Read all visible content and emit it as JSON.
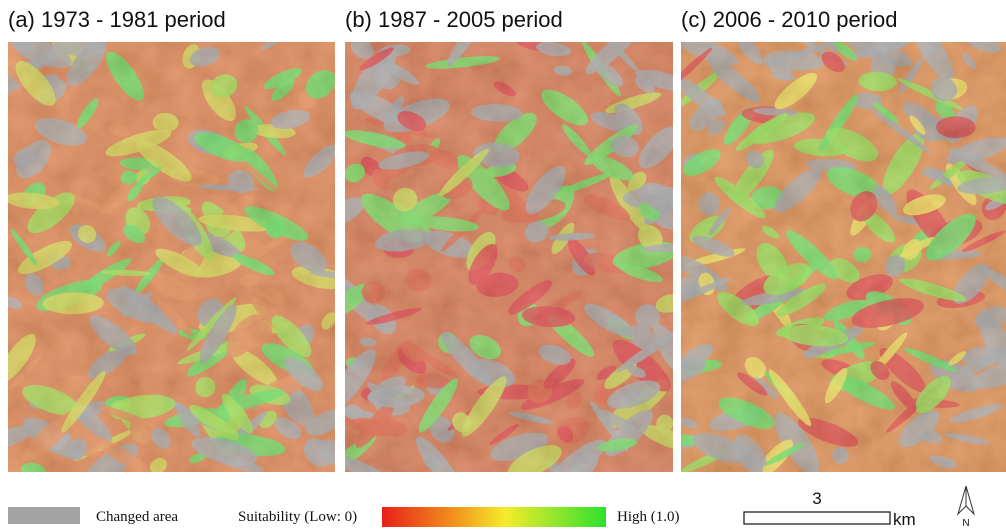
{
  "panels": [
    {
      "title": "(a) 1973 - 1981 period"
    },
    {
      "title": "(b) 1987 - 2005 period"
    },
    {
      "title": "(c) 2006 - 2010 period"
    }
  ],
  "legend": {
    "changed_area": "Changed area",
    "suitability_low": "Suitability (Low: 0)",
    "suitability_high": "High (1.0)"
  },
  "scale_bar": {
    "distance": "3",
    "unit": "km"
  },
  "north_arrow": {
    "label": "N"
  }
}
